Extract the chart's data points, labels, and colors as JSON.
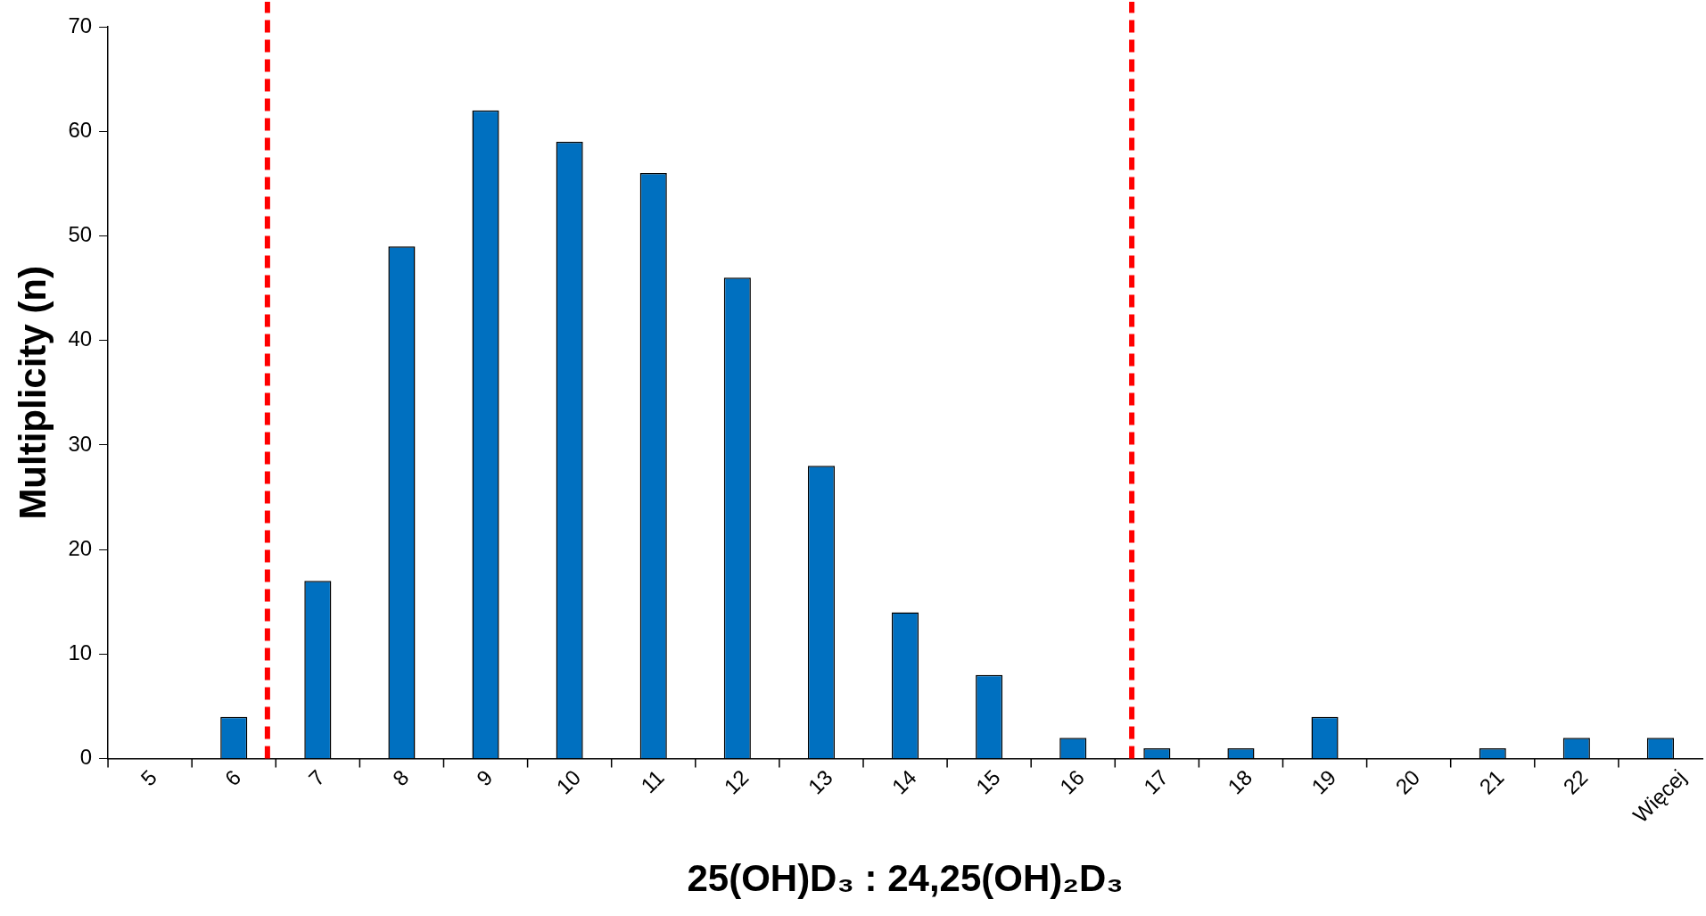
{
  "chart_data": {
    "type": "bar",
    "xlabel": "25(OH)D₃ : 24,25(OH)₂D₃",
    "ylabel": "Multiplicity (n)",
    "x": [
      5,
      6,
      7,
      8,
      9,
      10,
      11,
      12,
      13,
      14,
      15,
      16,
      17,
      18,
      19,
      20,
      21,
      22,
      23
    ],
    "values": [
      0,
      4,
      17,
      49,
      62,
      59,
      56,
      46,
      28,
      14,
      8,
      2,
      1,
      1,
      4,
      0,
      1,
      2,
      2
    ],
    "color": "#0070c0",
    "xlim": [
      4.5,
      23.5
    ],
    "xticks": [
      5,
      6,
      7,
      8,
      9,
      10,
      11,
      12,
      13,
      14,
      15,
      16,
      17,
      18,
      19,
      20,
      21,
      22,
      {
        "value": 23,
        "label": "Więcej"
      }
    ],
    "ylim": [
      0,
      70
    ],
    "yticks": [
      0,
      10,
      20,
      30,
      40,
      50,
      60,
      70
    ],
    "ref_lines": [
      {
        "axis": "x",
        "value": 6.4,
        "color": "#ff0000",
        "line_style": "dashed"
      },
      {
        "axis": "x",
        "value": 16.7,
        "color": "#ff0000",
        "line_style": "dashed"
      }
    ]
  }
}
